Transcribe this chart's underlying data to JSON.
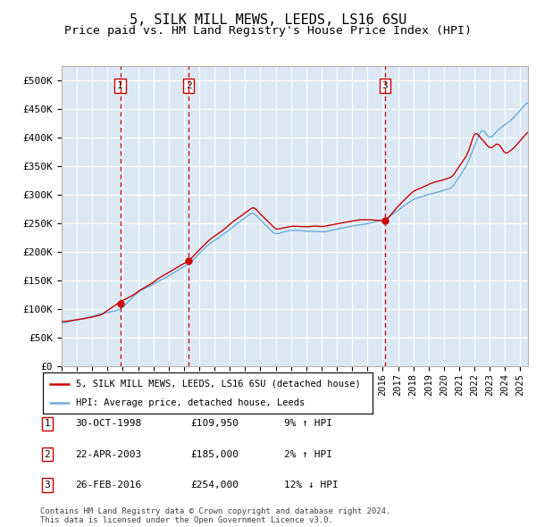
{
  "title": "5, SILK MILL MEWS, LEEDS, LS16 6SU",
  "subtitle": "Price paid vs. HM Land Registry's House Price Index (HPI)",
  "title_fontsize": 11,
  "subtitle_fontsize": 9.5,
  "ylabel_ticks": [
    "£0",
    "£50K",
    "£100K",
    "£150K",
    "£200K",
    "£250K",
    "£300K",
    "£350K",
    "£400K",
    "£450K",
    "£500K"
  ],
  "ytick_values": [
    0,
    50000,
    100000,
    150000,
    200000,
    250000,
    300000,
    350000,
    400000,
    450000,
    500000
  ],
  "ylim": [
    0,
    525000
  ],
  "xlim_start": 1995.0,
  "xlim_end": 2025.5,
  "background_color": "#ffffff",
  "plot_bg_color": "#dce9f5",
  "grid_color": "#ffffff",
  "hpi_line_color": "#6aacdc",
  "price_color": "#cc0000",
  "transaction_line_color": "#cc0000",
  "transactions": [
    {
      "id": 1,
      "date": 1998.83,
      "price": 109950,
      "label": "1",
      "date_str": "30-OCT-1998",
      "price_str": "£109,950",
      "pct": "9%",
      "dir": "↑"
    },
    {
      "id": 2,
      "date": 2003.31,
      "price": 185000,
      "label": "2",
      "date_str": "22-APR-2003",
      "price_str": "£185,000",
      "pct": "2%",
      "dir": "↑"
    },
    {
      "id": 3,
      "date": 2016.15,
      "price": 254000,
      "label": "3",
      "date_str": "26-FEB-2016",
      "price_str": "£254,000",
      "pct": "12%",
      "dir": "↓"
    }
  ],
  "legend_label_price": "5, SILK MILL MEWS, LEEDS, LS16 6SU (detached house)",
  "legend_label_hpi": "HPI: Average price, detached house, Leeds",
  "footer": "Contains HM Land Registry data © Crown copyright and database right 2024.\nThis data is licensed under the Open Government Licence v3.0.",
  "xtick_years": [
    1995,
    1996,
    1997,
    1998,
    1999,
    2000,
    2001,
    2002,
    2003,
    2004,
    2005,
    2006,
    2007,
    2008,
    2009,
    2010,
    2011,
    2012,
    2013,
    2014,
    2015,
    2016,
    2017,
    2018,
    2019,
    2020,
    2021,
    2022,
    2023,
    2024,
    2025
  ]
}
